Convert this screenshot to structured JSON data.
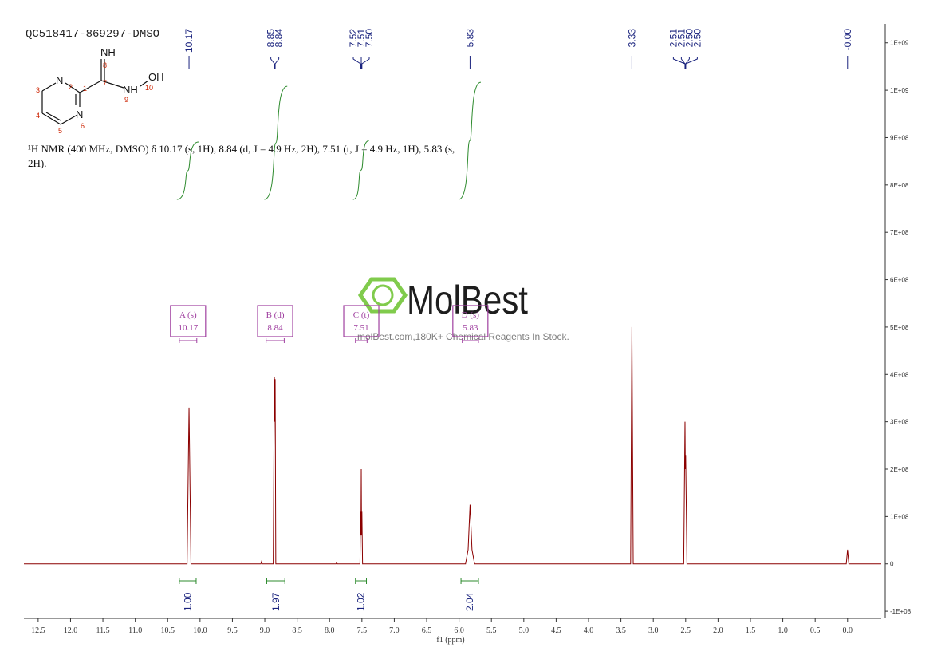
{
  "chart_data": {
    "type": "line",
    "title": "QC518417-869297-DMSO",
    "x_label": "f1 (ppm)",
    "description": [
      "¹H NMR (400 MHz, DMSO) δ 10.17 (s, 1H), 8.84 (d, J = 4.9 Hz, 2H), 7.51 (t, J = 4.9 Hz, 1H), 5.83 (s,",
      "2H)."
    ],
    "watermark": {
      "logo": "MolBest",
      "tagline": "molBest.com,180K+ Chemical Reagents In Stock."
    },
    "structure": {
      "atoms": [
        "NH",
        "N",
        "N",
        "NH",
        "OH"
      ],
      "numbers": [
        1,
        2,
        3,
        4,
        5,
        6,
        7,
        8,
        9,
        10
      ]
    },
    "x": [
      12.72,
      10.2,
      10.17,
      10.14,
      9.06,
      9.05,
      9.04,
      8.87,
      8.852,
      8.846,
      8.84,
      8.83,
      7.9,
      7.89,
      7.88,
      7.53,
      7.52,
      7.515,
      7.51,
      7.505,
      7.5,
      7.49,
      5.9,
      5.86,
      5.83,
      5.8,
      5.76,
      3.35,
      3.33,
      3.31,
      2.53,
      2.51,
      2.505,
      2.5,
      2.48,
      0.02,
      0.0,
      -0.02,
      -0.52
    ],
    "series": [
      {
        "color": "#8b0000",
        "values": [
          0,
          0,
          330000000,
          0,
          0,
          5000000,
          0,
          0,
          395000000,
          300000000,
          390000000,
          0,
          0,
          3000000,
          0,
          0,
          110000000,
          60000000,
          200000000,
          60000000,
          110000000,
          0,
          0,
          30000000,
          125000000,
          30000000,
          0,
          0,
          500000000,
          0,
          0,
          300000000,
          200000000,
          230000000,
          0,
          0,
          30000000,
          0,
          0
        ]
      }
    ],
    "xlim": [
      12.72,
      -0.52
    ],
    "ylim": [
      -115000000,
      1140000000
    ],
    "xticks": [
      {
        "value": 12.5,
        "label": "12.5"
      },
      {
        "value": 12,
        "label": "12.0"
      },
      {
        "value": 11.5,
        "label": "11.5"
      },
      {
        "value": 11,
        "label": "11.0"
      },
      {
        "value": 10.5,
        "label": "10.5"
      },
      {
        "value": 10,
        "label": "10.0"
      },
      {
        "value": 9.5,
        "label": "9.5"
      },
      {
        "value": 9,
        "label": "9.0"
      },
      {
        "value": 8.5,
        "label": "8.5"
      },
      {
        "value": 8,
        "label": "8.0"
      },
      {
        "value": 7.5,
        "label": "7.5"
      },
      {
        "value": 7,
        "label": "7.0"
      },
      {
        "value": 6.5,
        "label": "6.5"
      },
      {
        "value": 6,
        "label": "6.0"
      },
      {
        "value": 5.5,
        "label": "5.5"
      },
      {
        "value": 5,
        "label": "5.0"
      },
      {
        "value": 4.5,
        "label": "4.5"
      },
      {
        "value": 4,
        "label": "4.0"
      },
      {
        "value": 3.5,
        "label": "3.5"
      },
      {
        "value": 3,
        "label": "3.0"
      },
      {
        "value": 2.5,
        "label": "2.5"
      },
      {
        "value": 2,
        "label": "2.0"
      },
      {
        "value": 1.5,
        "label": "1.5"
      },
      {
        "value": 1,
        "label": "1.0"
      },
      {
        "value": 0.5,
        "label": "0.5"
      },
      {
        "value": 0,
        "label": "0.0"
      }
    ],
    "yticks": [
      {
        "value": 1100000000,
        "label": "1E+09"
      },
      {
        "value": 1000000000,
        "label": "1E+09"
      },
      {
        "value": 900000000,
        "label": "9E+08"
      },
      {
        "value": 800000000,
        "label": "8E+08"
      },
      {
        "value": 700000000,
        "label": "7E+08"
      },
      {
        "value": 600000000,
        "label": "6E+08"
      },
      {
        "value": 500000000,
        "label": "5E+08"
      },
      {
        "value": 400000000,
        "label": "4E+08"
      },
      {
        "value": 300000000,
        "label": "3E+08"
      },
      {
        "value": 200000000,
        "label": "2E+08"
      },
      {
        "value": 100000000,
        "label": "1E+08"
      },
      0,
      {
        "value": -100000000,
        "label": "-1E+08"
      }
    ],
    "peak_labels": [
      {
        "value": 10.17,
        "label": "10.17"
      },
      {
        "value": 8.85,
        "label": "8.85"
      },
      {
        "value": 8.84,
        "label": "8.84"
      },
      {
        "value": 7.52,
        "label": "7.52"
      },
      {
        "value": 7.51,
        "label": "7.51"
      },
      {
        "value": 7.5,
        "label": "7.50"
      },
      {
        "value": 5.83,
        "label": "5.83"
      },
      {
        "value": 3.33,
        "label": "3.33"
      },
      {
        "value": 2.51,
        "label": "2.51"
      },
      {
        "value": 2.51,
        "label": "2.51"
      },
      {
        "value": 2.5,
        "label": "2.50"
      },
      {
        "value": 2.5,
        "label": "2.50"
      },
      {
        "value": 0,
        "label": "-0.00"
      }
    ],
    "multiplets": [
      {
        "label": "A (s)",
        "shift": "10.17",
        "range": [
          10.32,
          10.05
        ]
      },
      {
        "label": "B (d)",
        "shift": "8.84",
        "range": [
          8.98,
          8.7
        ]
      },
      {
        "label": "C (t)",
        "shift": "7.51",
        "range": [
          7.6,
          7.42
        ]
      },
      {
        "label": "D (s)",
        "shift": "5.83",
        "range": [
          5.95,
          5.7
        ]
      }
    ],
    "integrals": [
      {
        "range": [
          10.32,
          10.06
        ],
        "value": 1,
        "label": "1.00"
      },
      {
        "range": [
          8.97,
          8.69
        ],
        "value": 1.97,
        "label": "1.97"
      },
      {
        "range": [
          7.6,
          7.43
        ],
        "value": 1.02,
        "label": "1.02"
      },
      {
        "range": [
          5.97,
          5.7
        ],
        "value": 2.04,
        "label": "2.04"
      }
    ]
  }
}
